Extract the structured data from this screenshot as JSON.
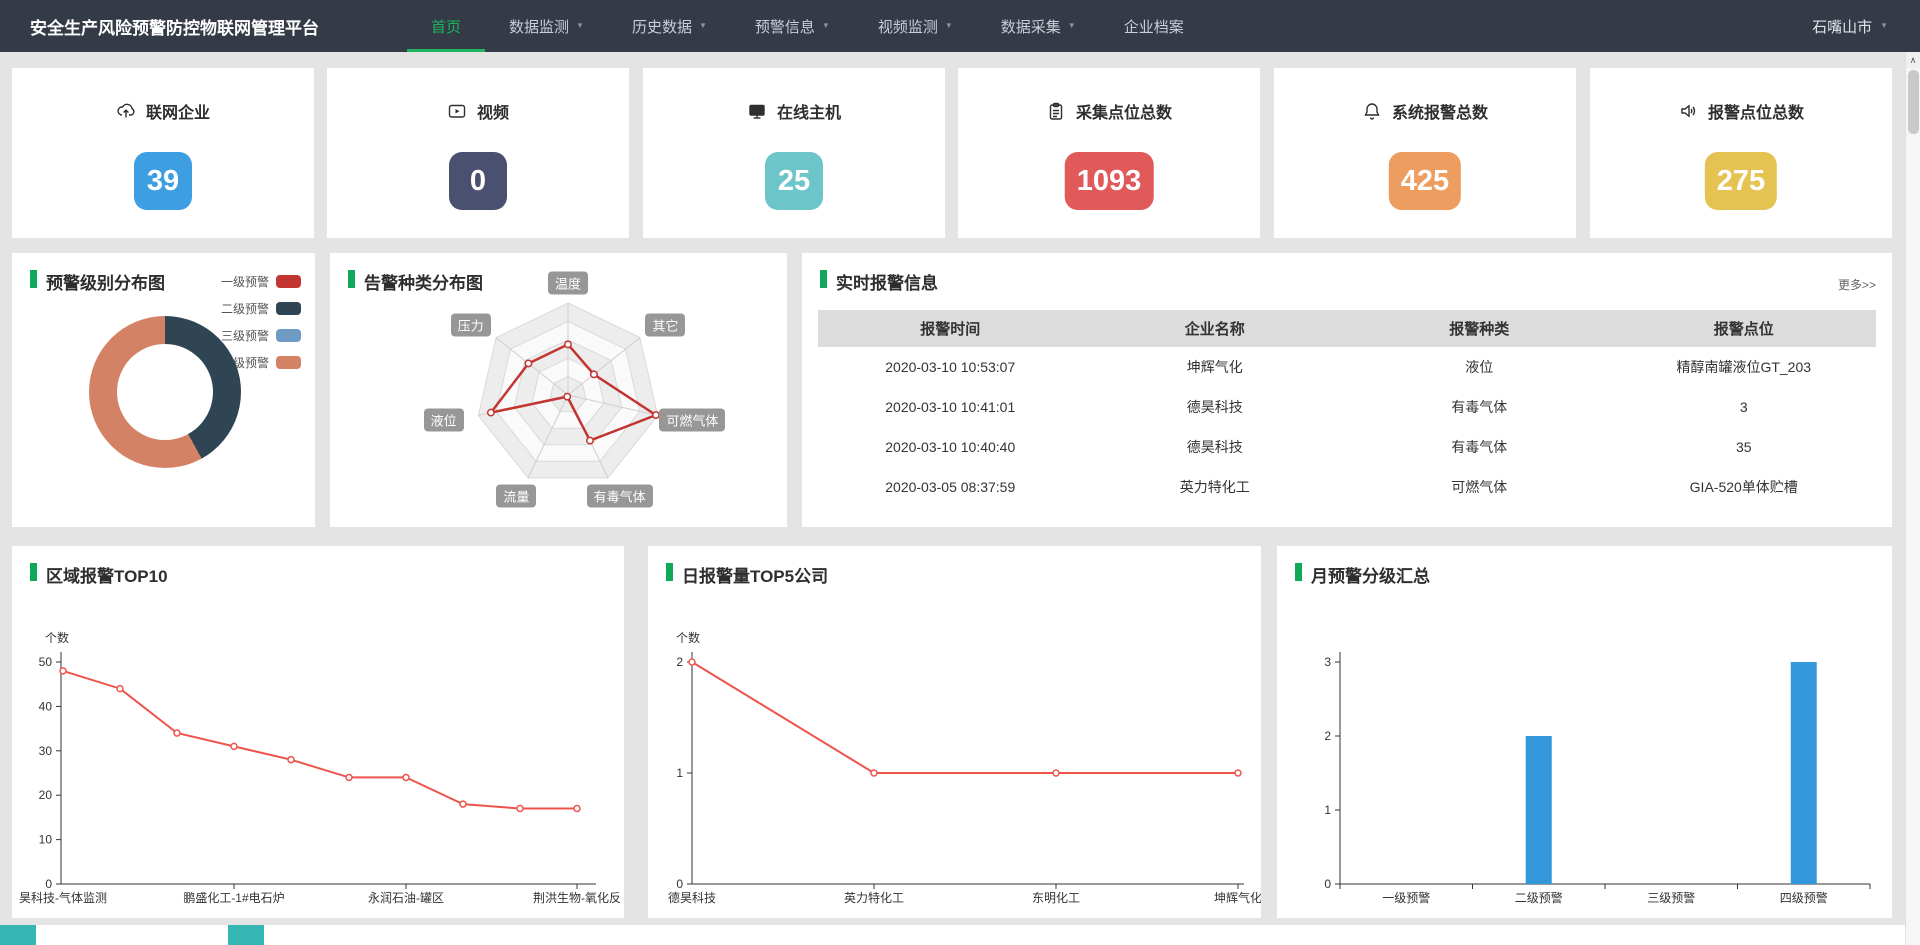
{
  "nav": {
    "title": "安全生产风险预警防控物联网管理平台",
    "items": [
      {
        "label": "首页",
        "active": true,
        "caret": false
      },
      {
        "label": "数据监测",
        "active": false,
        "caret": true
      },
      {
        "label": "历史数据",
        "active": false,
        "caret": true
      },
      {
        "label": "预警信息",
        "active": false,
        "caret": true
      },
      {
        "label": "视频监测",
        "active": false,
        "caret": true
      },
      {
        "label": "数据采集",
        "active": false,
        "caret": true
      },
      {
        "label": "企业档案",
        "active": false,
        "caret": false
      }
    ],
    "region": {
      "label": "石嘴山市"
    }
  },
  "stats": [
    {
      "label": "联网企业",
      "value": "39",
      "color": "#3d9fe2",
      "icon": "cloud-upload-icon"
    },
    {
      "label": "视频",
      "value": "0",
      "color": "#4a5170",
      "icon": "video-icon"
    },
    {
      "label": "在线主机",
      "value": "25",
      "color": "#6cc5c8",
      "icon": "monitor-icon"
    },
    {
      "label": "采集点位总数",
      "value": "1093",
      "color": "#e05a5a",
      "icon": "clipboard-icon"
    },
    {
      "label": "系统报警总数",
      "value": "425",
      "color": "#ec9d5f",
      "icon": "bell-icon"
    },
    {
      "label": "报警点位总数",
      "value": "275",
      "color": "#e5c352",
      "icon": "speaker-icon"
    }
  ],
  "level_dist": {
    "title": "预警级别分布图",
    "chart_data": {
      "type": "pie",
      "legend_position": "top-right",
      "slices": [
        {
          "label": "一级预警",
          "color": "#c23531",
          "value": 0
        },
        {
          "label": "二级预警",
          "color": "#2f4554",
          "value": 42
        },
        {
          "label": "三级预警",
          "color": "#6e9bc3",
          "value": 0
        },
        {
          "label": "四级预警",
          "color": "#d48265",
          "value": 58
        }
      ]
    }
  },
  "alarm_types": {
    "title": "告警种类分布图",
    "chart_data": {
      "type": "radar",
      "max": 5,
      "rings": 5,
      "axes": [
        "温度",
        "其它",
        "可燃气体",
        "有毒气体",
        "流量",
        "液位",
        "压力"
      ],
      "values": [
        2.75,
        1.8,
        4.9,
        2.75,
        0.1,
        4.3,
        2.75
      ],
      "line_color": "#c23531"
    }
  },
  "realtime": {
    "title": "实时报警信息",
    "more": "更多>>",
    "headers": [
      "报警时间",
      "企业名称",
      "报警种类",
      "报警点位"
    ],
    "rows": [
      [
        "2020-03-10 10:53:07",
        "坤辉气化",
        "液位",
        "精醇南罐液位GT_203"
      ],
      [
        "2020-03-10 10:41:01",
        "德昊科技",
        "有毒气体",
        "3"
      ],
      [
        "2020-03-10 10:40:40",
        "德昊科技",
        "有毒气体",
        "35"
      ],
      [
        "2020-03-05 08:37:59",
        "英力特化工",
        "可燃气体",
        "GIA-520单体贮槽"
      ]
    ]
  },
  "top10": {
    "title": "区域报警TOP10",
    "chart_data": {
      "type": "line",
      "ylabel": "个数",
      "yticks": [
        0,
        10,
        20,
        30,
        40,
        50
      ],
      "values": [
        48,
        44,
        34,
        31,
        28,
        24,
        24,
        18,
        17,
        17
      ],
      "x_labels": [
        {
          "text": "昊科技-气体监测",
          "index": 0
        },
        {
          "text": "鹏盛化工-1#电石炉",
          "index": 3
        },
        {
          "text": "永润石油-罐区",
          "index": 6
        },
        {
          "text": "荆洪生物-氧化反",
          "index": 9
        }
      ],
      "line_color": "#ee544d"
    }
  },
  "daily": {
    "title": "日报警量TOP5公司",
    "chart_data": {
      "type": "line",
      "ylabel": "个数",
      "yticks": [
        0,
        1,
        2
      ],
      "categories": [
        "德昊科技",
        "英力特化工",
        "东明化工",
        "坤辉气化"
      ],
      "values": [
        2,
        1,
        1,
        1
      ],
      "line_color": "#ee544d"
    }
  },
  "monthly": {
    "title": "月预警分级汇总",
    "chart_data": {
      "type": "bar",
      "yticks": [
        0,
        1,
        2,
        3
      ],
      "categories": [
        "一级预警",
        "二级预警",
        "三级预警",
        "四级预警"
      ],
      "values": [
        0,
        2,
        0,
        3
      ],
      "bar_color": "#3398db"
    }
  }
}
